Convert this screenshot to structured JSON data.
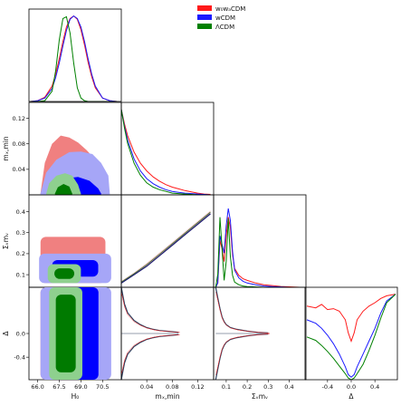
{
  "chart_data": {
    "type": "triangle-corner-plot",
    "colors": {
      "w0wa": "#ff1a1a",
      "wcdm": "#1a1aff",
      "lcdm": "#008000",
      "w0wa_fill_dark": "#f08080",
      "w0wa_fill_light": "#f9c4c4",
      "wcdm_fill_dark": "#0000ff",
      "wcdm_fill_light": "#a6a6f7",
      "lcdm_fill_dark": "#007a00",
      "lcdm_fill_light": "#8ed08e"
    },
    "legend": {
      "placement": "top-right",
      "entries": [
        {
          "label": "w₀wₐCDM",
          "color": "#ff1a1a"
        },
        {
          "label": "wCDM",
          "color": "#1a1aff"
        },
        {
          "label": "ΛCDM",
          "color": "#008000"
        }
      ]
    },
    "parameters": [
      {
        "id": "H0",
        "label": "H₀",
        "range": [
          65.4,
          71.8
        ],
        "ticks": [
          66.0,
          67.5,
          69.0,
          70.5
        ],
        "tick_labels": [
          "66.0",
          "67.5",
          "69.0",
          "70.5"
        ]
      },
      {
        "id": "mxmin",
        "label": "mₓ,min",
        "range": [
          0.0,
          0.145
        ],
        "ticks": [
          0.04,
          0.08,
          0.12
        ],
        "tick_labels": [
          "0.04",
          "0.08",
          "0.12"
        ]
      },
      {
        "id": "summnu",
        "label": "Σᵥmᵥ",
        "range": [
          0.04,
          0.48
        ],
        "ticks": [
          0.1,
          0.2,
          0.3,
          0.4
        ],
        "tick_labels": [
          "0.1",
          "0.2",
          "0.3",
          "0.4"
        ]
      },
      {
        "id": "delta",
        "label": "Δ",
        "range": [
          -0.78,
          0.78
        ],
        "ticks": [
          -0.4,
          0.0,
          0.4
        ],
        "tick_labels": [
          "-0.4",
          "0.0",
          "0.4"
        ]
      }
    ],
    "row_ticks": {
      "mxmin": {
        "ticks": [
          0.04,
          0.08,
          0.12
        ],
        "tick_labels": [
          "0.04",
          "0.08",
          "0.12"
        ]
      },
      "summnu": {
        "ticks": [
          0.1,
          0.2,
          0.3,
          0.4
        ],
        "tick_labels": [
          "0.1",
          "0.2",
          "0.3",
          "0.4"
        ]
      },
      "delta": {
        "ticks": [
          -0.4,
          0.0
        ],
        "tick_labels": [
          "-0.4",
          "0.0"
        ]
      }
    },
    "marginals": {
      "H0": {
        "x": [
          65.5,
          66.0,
          66.5,
          67.0,
          67.25,
          67.5,
          67.75,
          68.0,
          68.25,
          68.5,
          68.75,
          69.0,
          69.25,
          69.5,
          69.75,
          70.0,
          70.5,
          71.0,
          71.5
        ],
        "w0wa": [
          0.0,
          0.01,
          0.05,
          0.18,
          0.32,
          0.5,
          0.7,
          0.87,
          0.97,
          1.0,
          0.96,
          0.84,
          0.66,
          0.46,
          0.29,
          0.16,
          0.04,
          0.01,
          0.0
        ],
        "wcdm": [
          0.0,
          0.01,
          0.04,
          0.15,
          0.28,
          0.45,
          0.65,
          0.83,
          0.96,
          1.0,
          0.97,
          0.87,
          0.7,
          0.5,
          0.32,
          0.18,
          0.04,
          0.01,
          0.0
        ],
        "lcdm": [
          0.0,
          0.0,
          0.01,
          0.12,
          0.36,
          0.72,
          0.97,
          0.99,
          0.8,
          0.45,
          0.16,
          0.04,
          0.01,
          0.0,
          0.0,
          0.0,
          0.0,
          0.0,
          0.0
        ]
      },
      "mxmin": {
        "x": [
          0.0,
          0.005,
          0.01,
          0.02,
          0.03,
          0.04,
          0.05,
          0.06,
          0.07,
          0.08,
          0.09,
          0.1,
          0.11,
          0.12,
          0.13,
          0.14
        ],
        "w0wa": [
          1.0,
          0.83,
          0.69,
          0.5,
          0.37,
          0.28,
          0.21,
          0.16,
          0.12,
          0.09,
          0.07,
          0.05,
          0.035,
          0.02,
          0.01,
          0.005
        ],
        "wcdm": [
          1.0,
          0.8,
          0.64,
          0.42,
          0.28,
          0.19,
          0.13,
          0.09,
          0.06,
          0.04,
          0.03,
          0.02,
          0.015,
          0.01,
          0.005,
          0.0
        ],
        "lcdm": [
          1.0,
          0.78,
          0.6,
          0.37,
          0.23,
          0.14,
          0.09,
          0.06,
          0.04,
          0.02,
          0.015,
          0.01,
          0.005,
          0.0,
          0.0,
          0.0
        ]
      },
      "summnu": {
        "x": [
          0.05,
          0.06,
          0.07,
          0.08,
          0.09,
          0.1,
          0.11,
          0.12,
          0.13,
          0.14,
          0.16,
          0.18,
          0.2,
          0.24,
          0.28,
          0.32,
          0.36,
          0.4,
          0.45
        ],
        "w0wa": [
          0.0,
          0.05,
          0.55,
          0.45,
          0.3,
          0.6,
          0.82,
          0.7,
          0.38,
          0.22,
          0.14,
          0.1,
          0.08,
          0.05,
          0.03,
          0.02,
          0.01,
          0.005,
          0.0
        ],
        "wcdm": [
          0.0,
          0.05,
          0.6,
          0.5,
          0.4,
          0.72,
          0.92,
          0.78,
          0.42,
          0.2,
          0.11,
          0.07,
          0.05,
          0.03,
          0.015,
          0.008,
          0.004,
          0.0,
          0.0
        ],
        "lcdm": [
          0.0,
          0.15,
          0.82,
          0.45,
          0.08,
          0.3,
          0.8,
          0.36,
          0.14,
          0.06,
          0.03,
          0.015,
          0.008,
          0.004,
          0.0,
          0.0,
          0.0,
          0.0,
          0.0
        ]
      },
      "delta": {
        "x": [
          -0.75,
          -0.6,
          -0.5,
          -0.4,
          -0.3,
          -0.2,
          -0.1,
          -0.05,
          0.0,
          0.05,
          0.1,
          0.2,
          0.3,
          0.4,
          0.5,
          0.6,
          0.75
        ],
        "w0wa": [
          0.86,
          0.84,
          0.88,
          0.82,
          0.83,
          0.8,
          0.7,
          0.55,
          0.45,
          0.55,
          0.7,
          0.8,
          0.86,
          0.9,
          0.95,
          0.98,
          1.0
        ],
        "wcdm": [
          0.7,
          0.66,
          0.6,
          0.52,
          0.42,
          0.3,
          0.15,
          0.06,
          0.03,
          0.06,
          0.15,
          0.3,
          0.45,
          0.6,
          0.78,
          0.92,
          1.0
        ],
        "lcdm": [
          0.5,
          0.46,
          0.4,
          0.33,
          0.25,
          0.16,
          0.07,
          0.02,
          0.0,
          0.02,
          0.07,
          0.18,
          0.34,
          0.52,
          0.72,
          0.9,
          1.0
        ]
      }
    },
    "posteriors_2d": {
      "H0-mxmin": {
        "w0wa_outer": [
          [
            66.2,
            0.002
          ],
          [
            66.5,
            0.05
          ],
          [
            67.0,
            0.08
          ],
          [
            67.6,
            0.093
          ],
          [
            68.2,
            0.09
          ],
          [
            68.8,
            0.082
          ],
          [
            69.4,
            0.07
          ],
          [
            70.0,
            0.055
          ],
          [
            70.5,
            0.03
          ],
          [
            70.8,
            0.005
          ]
        ],
        "w0wa_inner": [
          [
            66.8,
            0.002
          ],
          [
            67.2,
            0.025
          ],
          [
            67.8,
            0.035
          ],
          [
            68.5,
            0.034
          ],
          [
            69.2,
            0.028
          ],
          [
            69.8,
            0.012
          ],
          [
            70.1,
            0.002
          ]
        ],
        "wcdm_outer": [
          [
            66.2,
            0.002
          ],
          [
            66.6,
            0.035
          ],
          [
            67.3,
            0.055
          ],
          [
            68.2,
            0.067
          ],
          [
            69.0,
            0.068
          ],
          [
            69.8,
            0.064
          ],
          [
            70.4,
            0.05
          ],
          [
            70.9,
            0.03
          ],
          [
            71.0,
            0.002
          ]
        ],
        "wcdm_inner": [
          [
            66.8,
            0.002
          ],
          [
            67.3,
            0.018
          ],
          [
            68.0,
            0.026
          ],
          [
            68.8,
            0.028
          ],
          [
            69.6,
            0.022
          ],
          [
            70.2,
            0.01
          ],
          [
            70.4,
            0.002
          ]
        ],
        "lcdm_outer": [
          [
            66.6,
            0.002
          ],
          [
            66.8,
            0.018
          ],
          [
            67.3,
            0.03
          ],
          [
            67.9,
            0.034
          ],
          [
            68.4,
            0.03
          ],
          [
            68.8,
            0.016
          ],
          [
            69.0,
            0.002
          ]
        ],
        "lcdm_inner": [
          [
            67.2,
            0.002
          ],
          [
            67.4,
            0.012
          ],
          [
            67.8,
            0.017
          ],
          [
            68.2,
            0.013
          ],
          [
            68.4,
            0.002
          ]
        ]
      },
      "H0-summnu": {
        "w0wa_outer": {
          "x": [
            66.2,
            70.7
          ],
          "y": [
            0.06,
            0.28
          ]
        },
        "wcdm_outer": {
          "x": [
            66.1,
            71.1
          ],
          "y": [
            0.06,
            0.2
          ]
        },
        "lcdm_outer": {
          "x": [
            66.7,
            69.0
          ],
          "y": [
            0.06,
            0.15
          ]
        }
      },
      "H0-delta": {
        "w0wa_outer": {
          "x": [
            66.2,
            70.7
          ],
          "y": [
            -0.78,
            0.78
          ]
        },
        "wcdm_outer": {
          "x": [
            66.2,
            71.1
          ],
          "y": [
            -0.78,
            0.78
          ]
        },
        "lcdm_outer": {
          "x": [
            66.8,
            69.1
          ],
          "y": [
            -0.78,
            0.78
          ]
        }
      },
      "mxmin-summnu": {
        "x": [
          0.0,
          0.02,
          0.04,
          0.06,
          0.08,
          0.1,
          0.12,
          0.14
        ],
        "lower": [
          0.06,
          0.1,
          0.14,
          0.19,
          0.24,
          0.29,
          0.34,
          0.39
        ],
        "upper": [
          0.07,
          0.11,
          0.155,
          0.205,
          0.255,
          0.305,
          0.355,
          0.405
        ]
      },
      "mxmin-delta": {
        "x": [
          0.0,
          0.005,
          0.01,
          0.02,
          0.03,
          0.04,
          0.05,
          0.06,
          0.07,
          0.08,
          0.09
        ],
        "upper": [
          0.78,
          0.5,
          0.35,
          0.22,
          0.15,
          0.1,
          0.07,
          0.05,
          0.04,
          0.03,
          0.02
        ],
        "lower": [
          -0.78,
          -0.5,
          -0.35,
          -0.22,
          -0.15,
          -0.1,
          -0.07,
          -0.05,
          -0.04,
          -0.03,
          -0.02
        ]
      },
      "summnu-delta": {
        "x": [
          0.05,
          0.06,
          0.07,
          0.08,
          0.09,
          0.1,
          0.12,
          0.15,
          0.2,
          0.25,
          0.3
        ],
        "upper": [
          0.78,
          0.6,
          0.42,
          0.28,
          0.2,
          0.15,
          0.1,
          0.07,
          0.04,
          0.02,
          0.01
        ],
        "lower": [
          -0.78,
          -0.6,
          -0.42,
          -0.28,
          -0.2,
          -0.15,
          -0.1,
          -0.07,
          -0.04,
          -0.02,
          -0.01
        ]
      }
    }
  }
}
